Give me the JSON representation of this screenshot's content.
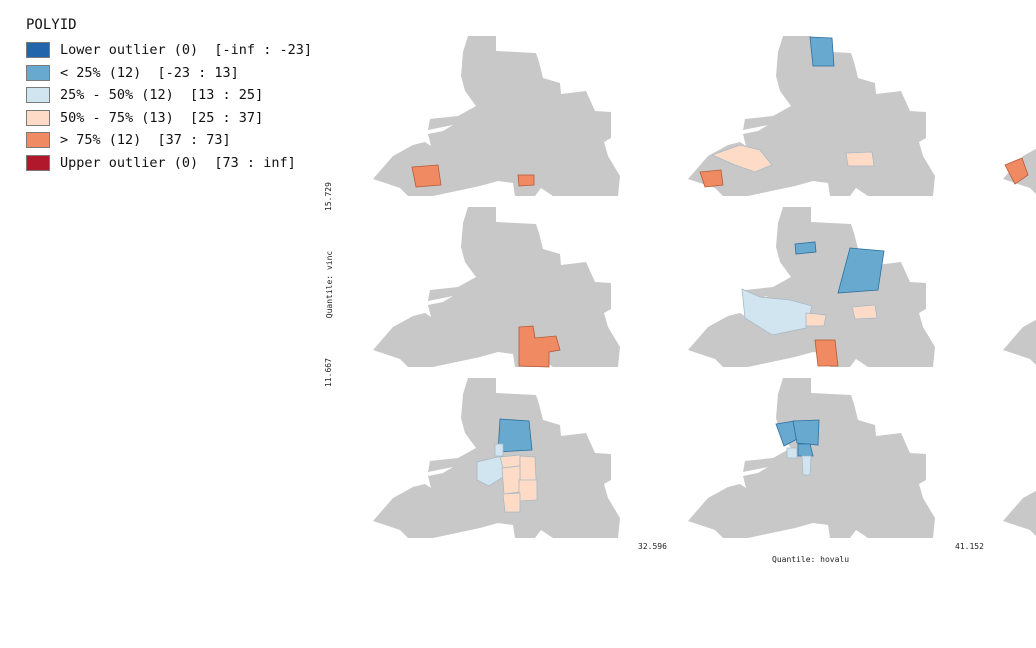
{
  "legend": {
    "title": "POLYID",
    "items": [
      {
        "label": "Lower outlier (0)  [-inf : -23]",
        "color": "#2166ac"
      },
      {
        "label": "< 25% (12)  [-23 : 13]",
        "color": "#67a9cf"
      },
      {
        "label": "25% - 50% (12)  [13 : 25]",
        "color": "#d1e5f0"
      },
      {
        "label": "50% - 75% (13)  [25 : 37]",
        "color": "#fddbc7"
      },
      {
        "label": "> 75% (12)  [37 : 73]",
        "color": "#ef8a62"
      },
      {
        "label": "Upper outlier (0)  [73 : inf]",
        "color": "#b2182b"
      }
    ]
  },
  "axes": {
    "y_title": "Quantile: vinc",
    "y_upper": "15.729",
    "y_lower": "11.667",
    "x_title": "Quantile: hovalu",
    "x_left": "32.596",
    "x_right": "41.152"
  },
  "colors": {
    "base": "#c8c8c8",
    "blue": "#67a9cf",
    "lightblue": "#d1e5f0",
    "peach": "#fddbc7",
    "orange": "#ef8a62",
    "lower_outlier": "#2166ac",
    "upper_outlier": "#b2182b"
  }
}
